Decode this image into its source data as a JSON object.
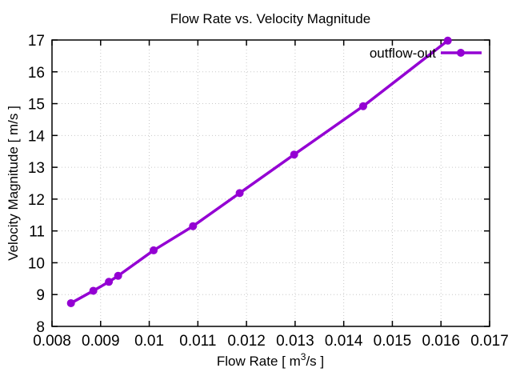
{
  "figure": {
    "background": "#ffffff"
  },
  "chart_data": {
    "type": "line",
    "title": "Flow Rate vs. Velocity Magnitude",
    "xlabel": "Flow Rate [ m³/s ]",
    "xlabel_parts": {
      "pre": "Flow Rate [ m",
      "sup": "3",
      "post": "/s ]"
    },
    "ylabel": "Velocity Magnitude [ m/s ]",
    "xlim": [
      0.008,
      0.017
    ],
    "ylim": [
      8,
      17
    ],
    "x_ticks": [
      0.008,
      0.009,
      0.01,
      0.011,
      0.012,
      0.013,
      0.014,
      0.015,
      0.016,
      0.017
    ],
    "x_tick_labels": [
      "0.008",
      "0.009",
      "0.01",
      "0.011",
      "0.012",
      "0.013",
      "0.014",
      "0.015",
      "0.016",
      "0.017"
    ],
    "y_ticks": [
      8,
      9,
      10,
      11,
      12,
      13,
      14,
      15,
      16,
      17
    ],
    "y_tick_labels": [
      "8",
      "9",
      "10",
      "11",
      "12",
      "13",
      "14",
      "15",
      "16",
      "17"
    ],
    "grid": true,
    "legend": {
      "position": "top-right",
      "entries": [
        {
          "label": "outflow-out",
          "color": "#9400d3",
          "marker": "circle"
        }
      ]
    },
    "series": [
      {
        "name": "outflow-out",
        "color": "#9400d3",
        "marker": "circle",
        "points": [
          [
            0.00839,
            8.73
          ],
          [
            0.00885,
            9.12
          ],
          [
            0.00917,
            9.4
          ],
          [
            0.00936,
            9.59
          ],
          [
            0.01009,
            10.39
          ],
          [
            0.0109,
            11.15
          ],
          [
            0.01186,
            12.19
          ],
          [
            0.01298,
            13.4
          ],
          [
            0.0144,
            14.92
          ],
          [
            0.01614,
            16.98
          ]
        ]
      }
    ]
  },
  "colors": {
    "line": "#9400d3",
    "grid": "#c8c8c8",
    "border": "#000000",
    "text": "#000000",
    "background": "#ffffff"
  }
}
